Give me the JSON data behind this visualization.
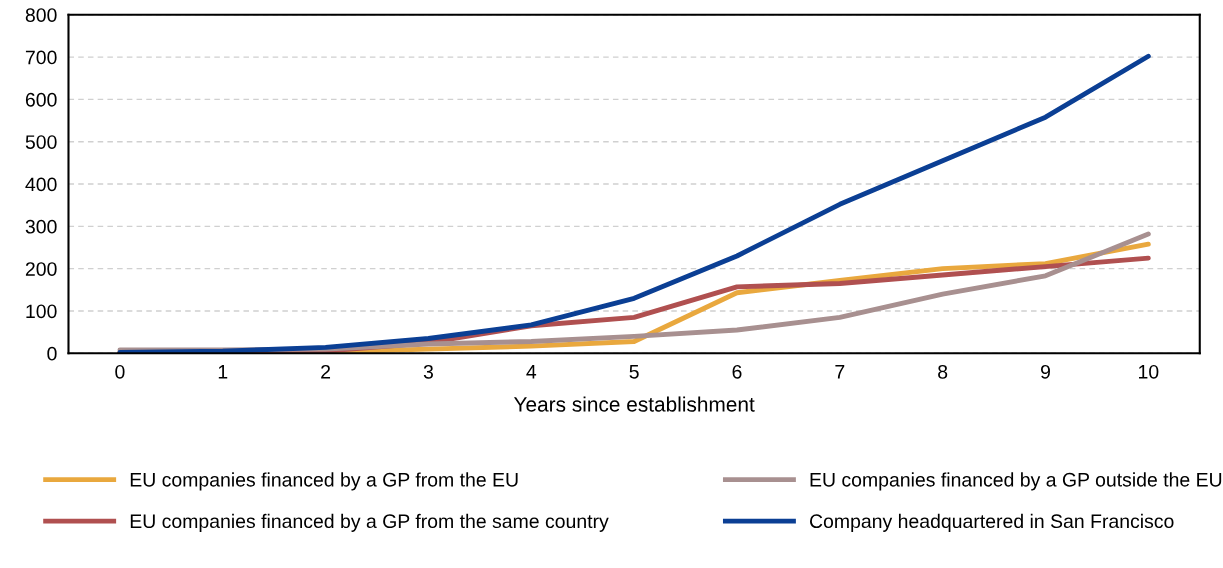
{
  "chart_data": {
    "type": "line",
    "xlabel": "Years since establishment",
    "x": [
      0,
      1,
      2,
      3,
      4,
      5,
      6,
      7,
      8,
      9,
      10
    ],
    "xlim": [
      -0.5,
      10.5
    ],
    "xticks": [
      0,
      1,
      2,
      3,
      4,
      5,
      6,
      7,
      8,
      9,
      10
    ],
    "ylim": [
      0,
      800
    ],
    "yticks": [
      0,
      100,
      200,
      300,
      400,
      500,
      600,
      700,
      800
    ],
    "grid": "y",
    "legend": "bottom",
    "marker": "none",
    "line_style": "solid",
    "series": [
      {
        "name": "EU companies financed by a GP from the EU",
        "color": "#e9a83e",
        "values": [
          2,
          2,
          3,
          10,
          17,
          28,
          143,
          172,
          200,
          212,
          258
        ]
      },
      {
        "name": "EU companies financed by a GP from the same country",
        "color": "#b05050",
        "values": [
          2,
          3,
          5,
          25,
          65,
          85,
          157,
          165,
          185,
          205,
          225
        ]
      },
      {
        "name": "EU companies financed by a GP outside the EU",
        "color": "#a89090",
        "values": [
          8,
          8,
          10,
          22,
          28,
          40,
          55,
          85,
          140,
          183,
          282
        ]
      },
      {
        "name": "Company headquartered in San Francisco",
        "color": "#0b3f94",
        "values": [
          2,
          5,
          14,
          35,
          67,
          130,
          230,
          352,
          455,
          558,
          702
        ]
      }
    ]
  }
}
